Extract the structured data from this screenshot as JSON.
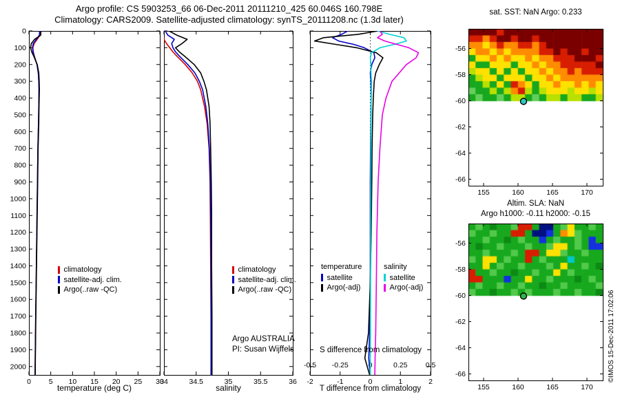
{
  "header": {
    "line1": "Argo profile: CS 5903253_66 06-Dec-2011 20111210_425 60.046S 160.798E",
    "line2": "Climatology: CARS2009. Satellite-adjusted climatology: synTS_20111208.nc (1.3d later)"
  },
  "watermark": "©IMOS 15-Dec-2011 17:02:06",
  "annotations": {
    "argo_australia": "Argo AUSTRALIA",
    "pi": "PI: Susan Wijffels"
  },
  "legends": {
    "profile": [
      {
        "label": "climatology",
        "color": "#d40000"
      },
      {
        "label": "satellite-adj. clim.",
        "color": "#0000c8"
      },
      {
        "label": "Argo(..raw -QC)",
        "color": "#000000"
      }
    ],
    "difference": {
      "temperature": {
        "header": "temperature",
        "items": [
          {
            "label": "satellite",
            "color": "#0000c8"
          },
          {
            "label": "Argo(-adj)",
            "color": "#000000"
          }
        ]
      },
      "salinity": {
        "header": "salinity",
        "items": [
          {
            "label": "satellite",
            "color": "#00d2d2"
          },
          {
            "label": "Argo(-adj)",
            "color": "#e800e8"
          }
        ]
      }
    }
  },
  "chart_data": [
    {
      "id": "temperature-profile",
      "type": "line",
      "xlabel": "temperature (deg C)",
      "ylabel": "depth (m)",
      "xlim": [
        0,
        30
      ],
      "ylim": [
        0,
        2050
      ],
      "xticks": [
        0,
        5,
        10,
        15,
        20,
        25,
        30
      ],
      "yticks": [
        0,
        100,
        200,
        300,
        400,
        500,
        600,
        700,
        800,
        900,
        1000,
        1100,
        1200,
        1300,
        1400,
        1500,
        1600,
        1700,
        1800,
        1900,
        2000
      ],
      "y_labels_visible": true,
      "series": [
        {
          "name": "climatology",
          "color": "#d40000",
          "depths": [
            0,
            25,
            50,
            75,
            100,
            125,
            150,
            200,
            250,
            300,
            350,
            450,
            550,
            700,
            900,
            1100,
            1400,
            1700,
            2000,
            2050
          ],
          "values": [
            2.6,
            2.55,
            1.9,
            1.2,
            0.9,
            1.0,
            1.25,
            1.85,
            2.15,
            2.25,
            2.3,
            2.25,
            2.2,
            2.05,
            1.95,
            1.85,
            1.7,
            1.55,
            1.42,
            1.4
          ]
        },
        {
          "name": "satellite-adj-clim",
          "color": "#0000c8",
          "depths": [
            0,
            25,
            50,
            75,
            100,
            125,
            150,
            200,
            250,
            300,
            350,
            450,
            550,
            700,
            900,
            1100,
            1400,
            1700,
            2000,
            2050
          ],
          "values": [
            2.45,
            2.4,
            1.7,
            1.0,
            0.8,
            0.95,
            1.2,
            1.85,
            2.15,
            2.25,
            2.3,
            2.25,
            2.2,
            2.05,
            1.95,
            1.85,
            1.7,
            1.55,
            1.42,
            1.4
          ]
        },
        {
          "name": "argo-raw-qc",
          "color": "#000000",
          "depths": [
            0,
            25,
            50,
            75,
            100,
            125,
            150,
            200,
            250,
            300,
            350,
            450,
            550,
            700,
            900,
            1100,
            1400,
            1700,
            2000,
            2050
          ],
          "values": [
            2.75,
            2.7,
            1.3,
            0.55,
            0.35,
            0.65,
            1.1,
            1.9,
            2.25,
            2.35,
            2.4,
            2.3,
            2.25,
            2.1,
            2.0,
            1.9,
            1.73,
            1.58,
            1.46,
            1.44
          ]
        }
      ]
    },
    {
      "id": "salinity-profile",
      "type": "line",
      "xlabel": "salinity",
      "ylabel": "depth (m)",
      "xlim": [
        34,
        36
      ],
      "ylim": [
        0,
        2050
      ],
      "xticks": [
        34,
        34.5,
        35,
        35.5,
        36
      ],
      "yticks": [
        0,
        100,
        200,
        300,
        400,
        500,
        600,
        700,
        800,
        900,
        1000,
        1100,
        1200,
        1300,
        1400,
        1500,
        1600,
        1700,
        1800,
        1900,
        2000
      ],
      "y_labels_visible": false,
      "series": [
        {
          "name": "climatology",
          "color": "#d40000",
          "depths": [
            0,
            25,
            50,
            75,
            100,
            125,
            150,
            200,
            250,
            300,
            350,
            450,
            550,
            700,
            900,
            1100,
            1400,
            1700,
            2000,
            2050
          ],
          "values": [
            33.98,
            33.99,
            34.0,
            34.04,
            34.09,
            34.14,
            34.2,
            34.33,
            34.44,
            34.52,
            34.57,
            34.63,
            34.67,
            34.7,
            34.715,
            34.72,
            34.725,
            34.73,
            34.73,
            34.73
          ]
        },
        {
          "name": "satellite-adj-clim",
          "color": "#0000c8",
          "depths": [
            0,
            25,
            50,
            75,
            100,
            125,
            150,
            200,
            250,
            300,
            350,
            450,
            550,
            700,
            900,
            1100,
            1400,
            1700,
            2000,
            2050
          ],
          "values": [
            34.02,
            34.06,
            34.16,
            34.12,
            34.14,
            34.18,
            34.24,
            34.37,
            34.48,
            34.55,
            34.6,
            34.65,
            34.68,
            34.705,
            34.72,
            34.725,
            34.73,
            34.73,
            34.73,
            34.73
          ]
        },
        {
          "name": "argo-raw-qc",
          "color": "#000000",
          "depths": [
            0,
            25,
            50,
            75,
            100,
            125,
            150,
            200,
            250,
            300,
            350,
            450,
            550,
            700,
            900,
            1100,
            1400,
            1700,
            2000,
            2050
          ],
          "values": [
            34.08,
            34.2,
            34.36,
            34.28,
            34.18,
            34.24,
            34.32,
            34.47,
            34.57,
            34.62,
            34.66,
            34.7,
            34.715,
            34.725,
            34.735,
            34.74,
            34.74,
            34.745,
            34.745,
            34.745
          ]
        }
      ]
    },
    {
      "id": "difference-profile",
      "type": "line",
      "xlabel": "T difference from climatology",
      "xlabel2": "S difference from climatology",
      "xlim": [
        -2,
        2
      ],
      "x2lim": [
        -0.5,
        0.5
      ],
      "ylim": [
        0,
        2050
      ],
      "xticks": [
        -2,
        -1,
        0,
        1,
        2
      ],
      "x2ticks": [
        -0.5,
        -0.25,
        0,
        0.25,
        0.5
      ],
      "zero_line": true,
      "series": [
        {
          "name": "t-satellite",
          "axis": "T",
          "color": "#0000c8",
          "depths": [
            0,
            20,
            40,
            60,
            80,
            100,
            130,
            160,
            200,
            250,
            300,
            400,
            500,
            700,
            900,
            1200,
            1500,
            1800,
            1950,
            2050
          ],
          "values": [
            -0.75,
            -0.95,
            -1.25,
            -1.05,
            -0.55,
            -0.2,
            0.12,
            0.15,
            0.05,
            0.0,
            0.02,
            0.03,
            0.02,
            0.01,
            0.0,
            0.0,
            0.0,
            -0.02,
            -0.05,
            0.0
          ]
        },
        {
          "name": "t-argo-adj",
          "axis": "T",
          "color": "#000000",
          "depths": [
            0,
            20,
            40,
            60,
            80,
            100,
            130,
            160,
            200,
            250,
            300,
            400,
            500,
            700,
            900,
            1200,
            1500,
            1800,
            1950,
            2050
          ],
          "values": [
            0.25,
            -0.4,
            -1.55,
            -1.85,
            -1.15,
            -0.45,
            0.2,
            0.42,
            0.3,
            0.18,
            0.13,
            0.1,
            0.08,
            0.06,
            0.05,
            0.03,
            0.0,
            -0.06,
            -0.18,
            -0.02
          ]
        },
        {
          "name": "s-satellite",
          "axis": "S",
          "color": "#00d2d2",
          "depths": [
            0,
            20,
            40,
            60,
            80,
            100,
            130,
            160,
            200,
            250,
            300,
            400,
            500,
            700,
            900,
            1200,
            1500,
            1800,
            1950,
            2050
          ],
          "values": [
            0.06,
            0.16,
            0.28,
            0.3,
            0.2,
            0.08,
            0.01,
            0.0,
            0.005,
            0.006,
            0.01,
            0.008,
            0.006,
            0.005,
            0.004,
            0.003,
            0.002,
            0.001,
            0.0,
            0.0
          ]
        },
        {
          "name": "s-argo-adj",
          "axis": "S",
          "color": "#e800e8",
          "depths": [
            0,
            20,
            40,
            60,
            80,
            100,
            130,
            160,
            200,
            250,
            300,
            400,
            500,
            700,
            900,
            1200,
            1500,
            1800,
            1950,
            2050
          ],
          "values": [
            0.08,
            0.1,
            0.06,
            0.12,
            0.22,
            0.32,
            0.4,
            0.38,
            0.3,
            0.24,
            0.18,
            0.13,
            0.1,
            0.08,
            0.065,
            0.055,
            0.05,
            0.045,
            0.04,
            0.038
          ]
        }
      ]
    },
    {
      "id": "sst-map",
      "type": "heatmap",
      "title": "sat. SST: NaN Argo: 0.233",
      "xlim": [
        152.8,
        172.3
      ],
      "ylim": [
        -66.5,
        -54.5
      ],
      "xticks": [
        155,
        160,
        165,
        170
      ],
      "yticks": [
        -56,
        -58,
        -60,
        -62,
        -64,
        -66
      ],
      "grid_extent": {
        "lon": [
          152.8,
          172.3
        ],
        "lat": [
          -54.5,
          -60.0
        ]
      },
      "palette": {
        "K": "#7a0000",
        "R": "#d81e00",
        "O": "#ff8c00",
        "Y": "#ffe100",
        "L": "#b8e000",
        "G": "#17a81e",
        "F": "#63cf5a"
      },
      "rows": [
        "KKKKRKKKKKKKKKKKKKK",
        "RRORKKRKKRKKKKKKKKK",
        "OOYOROORRORKKKKKKKK",
        "YOOYOYOOOORRKRKKRKK",
        "GYYOYOYYOYOORRRKKKR",
        "YGGYYYGYYOYOORRRRRK",
        "LYYGYGYGYYOYOORORRR",
        "GLYYGYYYGYYOYOOOOOO",
        "GGLGYGROYGYYOYYOYOY",
        "FGGLGLORLGLYYYLYYLY",
        "GFGGFGLLGFGLLGLLGGL"
      ],
      "marker": {
        "lon": 160.798,
        "lat": -60.046,
        "fill": "#35c4c4",
        "stroke": "#000000"
      }
    },
    {
      "id": "sla-map",
      "type": "heatmap",
      "title_line1": "Altim. SLA: NaN",
      "title_line2": "Argo h1000: -0.11 h2000: -0.15",
      "xlim": [
        152.8,
        172.3
      ],
      "ylim": [
        -66.5,
        -54.5
      ],
      "xticks": [
        155,
        160,
        165,
        170
      ],
      "yticks": [
        -56,
        -58,
        -60,
        -62,
        -64,
        -66
      ],
      "grid_extent": {
        "lon": [
          152.8,
          172.3
        ],
        "lat": [
          -54.5,
          -60.0
        ]
      },
      "palette": {
        "G": "#17a81e",
        "F": "#52c94b",
        "E": "#0c8a14",
        "Y": "#ffe100",
        "O": "#ff8c00",
        "R": "#d81e00",
        "B": "#1430e0",
        "N": "#001080",
        "C": "#00c8c8"
      },
      "rows": [
        "GFGEGGFRRGNNGFYGGFG",
        "FGGFGGRRGNNBGOYFGGG",
        "GGFGGEGFGGBGFGGFGBG",
        "GEGGFGGGFGGFYYGFGBB",
        "GGFGGGFGRRGYYFGGFGG",
        "FGYYGFGGRGFGGGCGGGG",
        "GGYGFGGFGGGFGYGGFGE",
        "RGGFGGEGGFGGYGFGGGG",
        "RRGGGBGGYGGFGGGEGFG",
        "GFGGFGGFGGEGGFGGGGF",
        "FGGEGGFGFGGGFGGFGGE"
      ],
      "marker": {
        "lon": 160.798,
        "lat": -60.046,
        "fill": "#33b34a",
        "stroke": "#000000"
      }
    }
  ]
}
